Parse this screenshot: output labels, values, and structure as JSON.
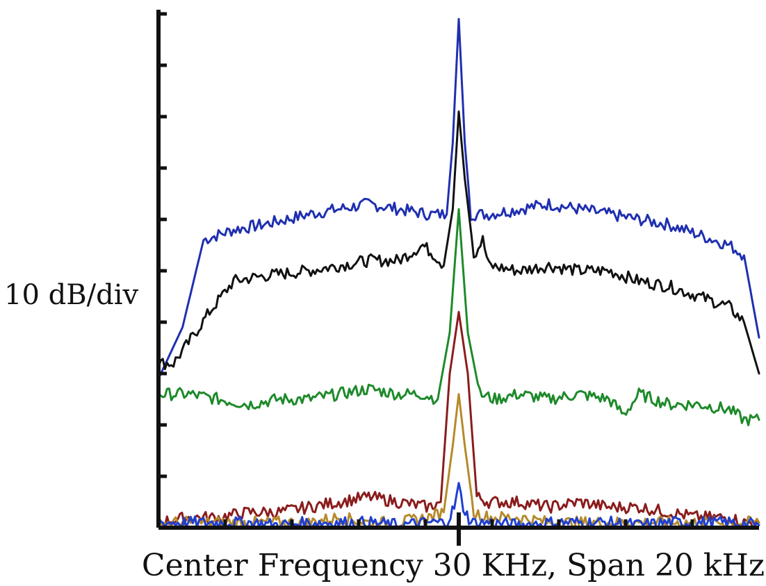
{
  "chart_data": {
    "type": "line",
    "title": "",
    "xlabel": "Center Frequency 30 KHz, Span 20 kHz",
    "ylabel": "10 dB/div",
    "x_unit": "kHz",
    "xlim": [
      20,
      40
    ],
    "ylim": [
      0,
      100
    ],
    "x_divisions": 9,
    "y_divisions": 10,
    "grid": false,
    "center_marker_x": 30,
    "series": [
      {
        "color": "#1f2fb0",
        "x": [
          20,
          20.8,
          21.5,
          22.5,
          23.5,
          25,
          26,
          27,
          28,
          29,
          29.6,
          29.8,
          30,
          30.2,
          30.4,
          31,
          32,
          33,
          34,
          35,
          36,
          37,
          38,
          39,
          39.5,
          40
        ],
        "y": [
          29,
          39,
          56,
          58,
          59,
          61,
          62,
          63,
          62,
          61,
          61,
          75,
          99,
          75,
          61,
          61,
          62,
          63,
          62,
          61,
          60,
          59,
          57,
          55,
          53,
          37
        ]
      },
      {
        "color": "#111111",
        "x": [
          20,
          20.5,
          21,
          21.7,
          22.5,
          23.5,
          25,
          26,
          27,
          28,
          28.8,
          29.2,
          29.5,
          29.8,
          30,
          30.2,
          30.5,
          30.8,
          31,
          32,
          33,
          34,
          35,
          36,
          37,
          38,
          39,
          39.5,
          40
        ],
        "y": [
          32,
          32,
          36,
          42,
          48,
          49,
          50,
          51,
          52,
          52,
          55,
          53,
          51,
          62,
          81,
          68,
          53,
          56,
          51,
          50,
          51,
          50,
          50,
          48,
          47,
          45,
          43,
          40,
          30
        ]
      },
      {
        "color": "#1e8a2a",
        "x": [
          20,
          21,
          22,
          23,
          24,
          25,
          26,
          27,
          28,
          28.8,
          29.3,
          29.7,
          30,
          30.3,
          30.7,
          31.2,
          32,
          33,
          34,
          35,
          35.5,
          36,
          37,
          38,
          39,
          39.5,
          40
        ],
        "y": [
          26,
          26,
          25,
          24,
          25,
          25,
          26,
          27,
          26,
          26,
          25,
          38,
          62,
          38,
          26,
          25,
          26,
          25,
          26,
          25,
          22,
          26,
          24,
          24,
          23,
          21,
          21
        ]
      },
      {
        "color": "#8a1c1c",
        "x": [
          20,
          21,
          22,
          23,
          24,
          25,
          26,
          27,
          28,
          29,
          29.4,
          29.7,
          30,
          30.3,
          30.6,
          31,
          32,
          33,
          34,
          35,
          36,
          37,
          38,
          39,
          39.5,
          40
        ],
        "y": [
          1,
          2,
          2,
          3,
          3,
          4,
          5,
          6,
          5,
          4,
          5,
          30,
          42,
          30,
          6,
          5,
          5,
          4,
          5,
          4,
          4,
          3,
          2,
          2,
          1,
          1
        ]
      },
      {
        "color": "#b58a2a",
        "x": [
          20,
          21,
          22,
          23,
          24,
          25,
          26,
          27,
          28,
          29,
          29.5,
          29.8,
          30,
          30.2,
          30.5,
          31,
          32,
          33,
          34,
          35,
          36,
          37,
          38,
          39,
          40
        ],
        "y": [
          1,
          1,
          1,
          1,
          1,
          1,
          2,
          1,
          1,
          2,
          3,
          16,
          26,
          16,
          3,
          2,
          2,
          1,
          1,
          1,
          1,
          1,
          1,
          1,
          1
        ]
      },
      {
        "color": "#1f3fd0",
        "x": [
          20,
          21,
          22,
          23,
          24,
          25,
          26,
          27,
          28,
          29,
          29.6,
          29.85,
          30,
          30.15,
          30.4,
          31,
          32,
          33,
          34,
          35,
          36,
          37,
          38,
          39,
          40
        ],
        "y": [
          1,
          1,
          1,
          1,
          0.5,
          1,
          1,
          1,
          0.5,
          1,
          1,
          4,
          8,
          4,
          1,
          1,
          0.5,
          1,
          1,
          1,
          0.5,
          1,
          1,
          1,
          0.5
        ]
      }
    ]
  }
}
